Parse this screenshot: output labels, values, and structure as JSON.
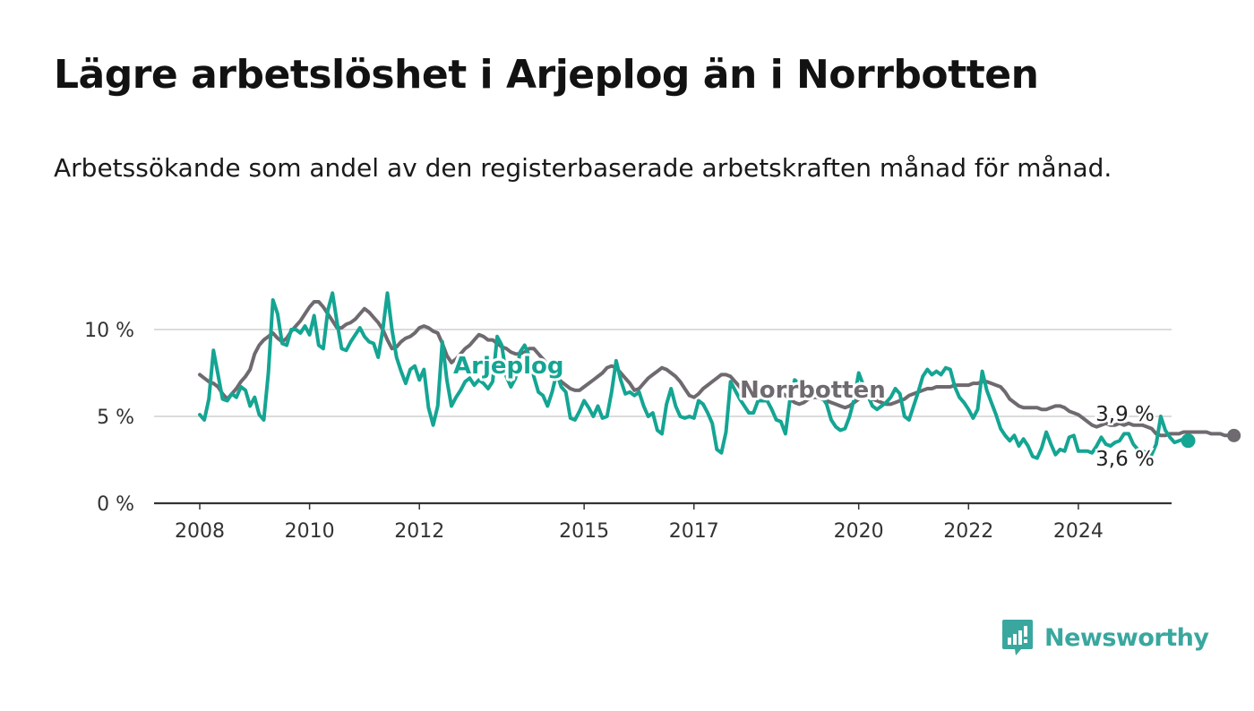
{
  "title": "Lägre arbetslöshet i Arjeplog än i Norrbotten",
  "subtitle": "Arbetssökande som andel av den registerbaserade arbetskraften månad för månad.",
  "brand": {
    "name": "Newsworthy",
    "icon": "newsworthy-logo-icon"
  },
  "colors": {
    "norrbotten": "#6f6a6f",
    "arjeplog": "#14a593",
    "grid": "#dcdcdc",
    "axis": "#333333"
  },
  "chart_data": {
    "type": "line",
    "x_start": "2008-01",
    "x_interval": "month",
    "xlim": [
      "2008-01",
      "2024-11"
    ],
    "ylim": [
      0,
      12.5
    ],
    "y_ticks": [
      0,
      5,
      10
    ],
    "y_tick_labels": [
      "0 %",
      "5 %",
      "10 %"
    ],
    "x_ticks": [
      "2008-01",
      "2010-01",
      "2012-01",
      "2015-01",
      "2017-01",
      "2020-01",
      "2022-01",
      "2024-01"
    ],
    "x_tick_labels": [
      "2008",
      "2010",
      "2012",
      "2015",
      "2017",
      "2020",
      "2022",
      "2024"
    ],
    "grid": "horizontal",
    "series": [
      {
        "name": "Norrbotten",
        "end_label": "3,9 %",
        "values": [
          7.4,
          7.2,
          7.0,
          6.9,
          6.7,
          6.3,
          6.0,
          6.3,
          6.6,
          7.0,
          7.3,
          7.7,
          8.6,
          9.1,
          9.4,
          9.6,
          9.8,
          9.5,
          9.3,
          9.5,
          9.9,
          10.2,
          10.5,
          10.9,
          11.3,
          11.6,
          11.6,
          11.3,
          10.9,
          10.5,
          10.1,
          10.1,
          10.3,
          10.4,
          10.6,
          10.9,
          11.2,
          11.0,
          10.7,
          10.4,
          10.0,
          9.4,
          8.9,
          9.0,
          9.3,
          9.5,
          9.6,
          9.8,
          10.1,
          10.2,
          10.1,
          9.9,
          9.8,
          9.2,
          8.5,
          8.1,
          8.3,
          8.6,
          8.9,
          9.1,
          9.4,
          9.7,
          9.6,
          9.4,
          9.4,
          9.2,
          9.0,
          8.9,
          8.7,
          8.6,
          8.6,
          8.7,
          8.9,
          8.9,
          8.6,
          8.3,
          8.0,
          7.6,
          7.3,
          7.0,
          6.8,
          6.6,
          6.5,
          6.5,
          6.7,
          6.9,
          7.1,
          7.3,
          7.5,
          7.8,
          7.9,
          7.8,
          7.5,
          7.2,
          6.9,
          6.5,
          6.6,
          6.9,
          7.2,
          7.4,
          7.6,
          7.8,
          7.7,
          7.5,
          7.3,
          7.0,
          6.6,
          6.2,
          6.1,
          6.3,
          6.6,
          6.8,
          7.0,
          7.2,
          7.4,
          7.4,
          7.3,
          7.0,
          6.7,
          6.3,
          6.2,
          6.2,
          6.3,
          6.5,
          6.6,
          6.6,
          6.5,
          6.4,
          6.2,
          6.0,
          5.8,
          5.7,
          5.8,
          6.0,
          6.1,
          6.1,
          6.0,
          5.9,
          5.8,
          5.7,
          5.6,
          5.5,
          5.6,
          5.8,
          6.0,
          6.1,
          6.1,
          6.0,
          5.9,
          5.8,
          5.7,
          5.7,
          5.8,
          5.9,
          6.0,
          6.2,
          6.3,
          6.4,
          6.5,
          6.6,
          6.6,
          6.7,
          6.7,
          6.7,
          6.7,
          6.8,
          6.8,
          6.8,
          6.8,
          6.9,
          6.9,
          7.0,
          7.0,
          6.9,
          6.8,
          6.7,
          6.4,
          6.0,
          5.8,
          5.6,
          5.5,
          5.5,
          5.5,
          5.5,
          5.4,
          5.4,
          5.5,
          5.6,
          5.6,
          5.5,
          5.3,
          5.2,
          5.1,
          4.9,
          4.7,
          4.5,
          4.4,
          4.5,
          4.6,
          4.5,
          4.5,
          4.6,
          4.5,
          4.6,
          4.5,
          4.5,
          4.5,
          4.4,
          4.3,
          4.0,
          3.9,
          3.9,
          4.0,
          4.0,
          4.0,
          4.1,
          4.1,
          4.1,
          4.1,
          4.1,
          4.1,
          4.0,
          4.0,
          4.0,
          3.9,
          3.9,
          3.9
        ]
      },
      {
        "name": "Arjeplog",
        "end_label": "3,6 %",
        "values": [
          5.1,
          4.8,
          6.0,
          8.8,
          7.4,
          6.0,
          5.9,
          6.3,
          6.1,
          6.7,
          6.5,
          5.6,
          6.1,
          5.1,
          4.8,
          7.5,
          11.7,
          10.9,
          9.2,
          9.1,
          10.0,
          10.0,
          9.8,
          10.2,
          9.7,
          10.8,
          9.1,
          8.9,
          11.1,
          12.1,
          10.4,
          8.9,
          8.8,
          9.3,
          9.7,
          10.1,
          9.6,
          9.3,
          9.2,
          8.4,
          10.0,
          12.1,
          10.0,
          8.4,
          7.6,
          6.9,
          7.7,
          7.9,
          7.1,
          7.7,
          5.5,
          4.5,
          5.6,
          9.3,
          7.1,
          5.6,
          6.1,
          6.5,
          7.0,
          7.2,
          6.8,
          7.1,
          6.9,
          6.6,
          7.0,
          9.6,
          9.1,
          7.3,
          6.7,
          7.2,
          8.7,
          9.1,
          8.5,
          7.3,
          6.4,
          6.2,
          5.6,
          6.4,
          7.5,
          6.7,
          6.4,
          4.9,
          4.8,
          5.3,
          5.9,
          5.5,
          5.0,
          5.6,
          4.9,
          5.0,
          6.4,
          8.2,
          7.1,
          6.3,
          6.4,
          6.2,
          6.4,
          5.6,
          5.0,
          5.2,
          4.2,
          4.0,
          5.7,
          6.6,
          5.6,
          5.0,
          4.9,
          5.0,
          4.9,
          5.9,
          5.7,
          5.2,
          4.6,
          3.1,
          2.9,
          4.1,
          7.0,
          6.5,
          6.0,
          5.6,
          5.2,
          5.2,
          5.9,
          5.9,
          5.9,
          5.4,
          4.8,
          4.7,
          4.0,
          6.0,
          7.1,
          6.9,
          6.6,
          6.2,
          6.2,
          6.4,
          6.1,
          5.7,
          4.8,
          4.4,
          4.2,
          4.3,
          5.0,
          6.0,
          7.5,
          6.8,
          6.2,
          5.6,
          5.4,
          5.6,
          5.8,
          6.1,
          6.6,
          6.3,
          5.0,
          4.8,
          5.6,
          6.4,
          7.3,
          7.7,
          7.4,
          7.6,
          7.4,
          7.8,
          7.7,
          6.7,
          6.1,
          5.8,
          5.4,
          4.9,
          5.4,
          7.6,
          6.5,
          5.8,
          5.1,
          4.3,
          3.9,
          3.6,
          3.9,
          3.3,
          3.7,
          3.3,
          2.7,
          2.6,
          3.2,
          4.1,
          3.4,
          2.8,
          3.1,
          3.0,
          3.8,
          3.9,
          3.0,
          3.0,
          3.0,
          2.9,
          3.3,
          3.8,
          3.4,
          3.3,
          3.5,
          3.6,
          4.0,
          4.0,
          3.4,
          3.1,
          3.0,
          2.9,
          2.8,
          3.4,
          5.0,
          4.2,
          3.8,
          3.5,
          3.6,
          3.7,
          3.6
        ]
      }
    ],
    "series_labels": [
      "Arjeplog",
      "Norrbotten"
    ]
  }
}
